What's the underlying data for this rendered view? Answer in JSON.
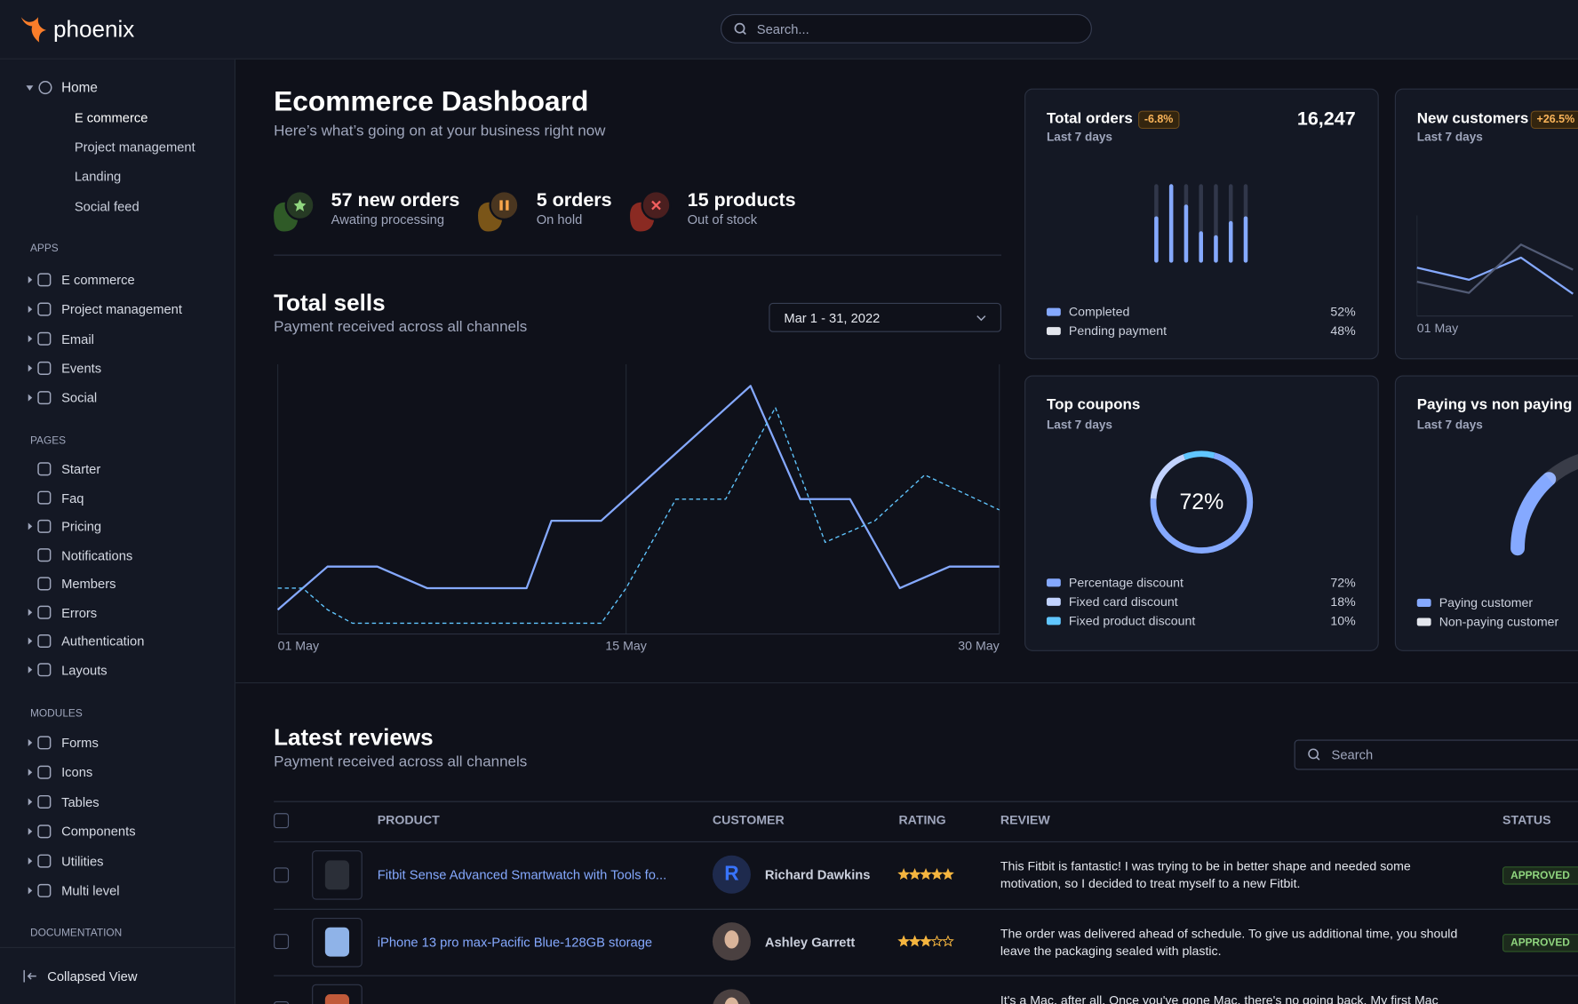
{
  "brand": "phoenix",
  "search_placeholder": "Search...",
  "sidebar": {
    "home": "Home",
    "home_items": [
      "E commerce",
      "Project management",
      "Landing",
      "Social feed"
    ],
    "sections": [
      {
        "title": "APPS",
        "items": [
          "E commerce",
          "Project management",
          "Email",
          "Events",
          "Social"
        ]
      },
      {
        "title": "PAGES",
        "items": [
          "Starter",
          "Faq",
          "Pricing",
          "Notifications",
          "Members",
          "Errors",
          "Authentication",
          "Layouts"
        ]
      },
      {
        "title": "MODULES",
        "items": [
          "Forms",
          "Icons",
          "Tables",
          "Components",
          "Utilities",
          "Multi level"
        ]
      }
    ],
    "documentation": "DOCUMENTATION",
    "collapse": "Collapsed View"
  },
  "header": {
    "title": "Ecommerce Dashboard",
    "subtitle": "Here’s what’s going on at your business right now"
  },
  "stats": [
    {
      "title": "57 new orders",
      "subtitle": "Awating processing"
    },
    {
      "title": "5 orders",
      "subtitle": "On hold"
    },
    {
      "title": "15 products",
      "subtitle": "Out of stock"
    }
  ],
  "chart_data": [
    {
      "type": "line",
      "title": "Total sells",
      "subtitle": "Payment received across all channels",
      "date_range": "Mar 1 - 31, 2022",
      "xlim": [
        1,
        30
      ],
      "ylim": [
        0,
        100
      ],
      "xticks": [
        {
          "value": 1,
          "label": "01 May"
        },
        {
          "value": 15,
          "label": "15 May"
        },
        {
          "value": 30,
          "label": "30 May"
        }
      ],
      "series": [
        {
          "color": "#85a9ff",
          "dash": false,
          "x": [
            1,
            3,
            5,
            7,
            11,
            12,
            14,
            20,
            22,
            24,
            26,
            28,
            30
          ],
          "values": [
            9,
            25,
            25,
            17,
            17,
            42,
            42,
            92,
            50,
            50,
            17,
            25,
            25
          ]
        },
        {
          "color": "#60c6ff",
          "dash": true,
          "x": [
            1,
            2,
            3,
            4,
            14,
            15,
            17,
            19,
            21,
            23,
            25,
            27,
            30
          ],
          "values": [
            17,
            17,
            9,
            4,
            4,
            17,
            50,
            50,
            84,
            34,
            42,
            59,
            46
          ]
        }
      ]
    },
    {
      "type": "bar",
      "title": "Total orders",
      "subtitle": "Last 7 days",
      "badge": "-6.8%",
      "total": "16,247",
      "categories": [
        null,
        null,
        null,
        null,
        null,
        null,
        null
      ],
      "values": [
        59,
        100,
        74,
        40,
        35,
        53,
        59
      ],
      "color": "#85a9ff",
      "ylim": [
        0,
        100
      ],
      "legend": [
        {
          "name": "Completed",
          "color": "#85a9ff",
          "share": "52%"
        },
        {
          "name": "Pending payment",
          "color": "#e3e6ed",
          "share": "48%"
        }
      ]
    },
    {
      "type": "line",
      "title": "New customers",
      "subtitle": "Last 7 days",
      "badge": "+26.5%",
      "x": [
        0,
        1,
        2,
        3
      ],
      "xlim": [
        0,
        3
      ],
      "ylim": [
        0,
        100
      ],
      "xticks": [
        {
          "value": 0,
          "label": "01 May"
        }
      ],
      "series": [
        {
          "color": "#85a9ff",
          "dash": false,
          "values": [
            48,
            36,
            58,
            22
          ]
        },
        {
          "color": "#525b75",
          "dash": false,
          "values": [
            34,
            23,
            71,
            46
          ]
        }
      ]
    },
    {
      "type": "pie",
      "donut": true,
      "title": "Top coupons",
      "subtitle": "Last 7 days",
      "categories": [
        "Percentage discount",
        "Fixed card discount",
        "Fixed product discount"
      ],
      "values": [
        72,
        18,
        10
      ],
      "value_labels": [
        "72%",
        "18%",
        "10%"
      ],
      "colors": [
        "#85a9ff",
        "#c2d3ff",
        "#60c6ff"
      ]
    },
    {
      "type": "gauge",
      "title": "Paying vs non paying",
      "subtitle": "Last 7 days",
      "categories": [
        "Paying customer",
        "Non-paying customer"
      ],
      "values": [
        27,
        73
      ],
      "colors": [
        "#85a9ff",
        "#e3e6ed"
      ]
    }
  ],
  "reviews": {
    "title": "Latest reviews",
    "subtitle": "Payment received across all channels",
    "search_placeholder": "Search",
    "columns": [
      "PRODUCT",
      "CUSTOMER",
      "RATING",
      "REVIEW",
      "STATUS"
    ],
    "rating_max": 5,
    "rows": [
      {
        "product": "Fitbit Sense Advanced Smartwatch with Tools fo...",
        "customer": "Richard Dawkins",
        "initial": "R",
        "rating": 5,
        "review": "This Fitbit is fantastic! I was trying to be in better shape and needed some motivation, so I decided to treat myself to a new Fitbit.",
        "status": "APPROVED"
      },
      {
        "product": "iPhone 13 pro max-Pacific Blue-128GB storage",
        "customer": "Ashley Garrett",
        "rating": 3,
        "review": "The order was delivered ahead of schedule. To give us additional time, you should leave the packaging sealed with plastic.",
        "status": "APPROVED"
      },
      {
        "review": "It's a Mac, after all. Once you've gone Mac, there's no going back. My first Mac lasted"
      }
    ]
  }
}
